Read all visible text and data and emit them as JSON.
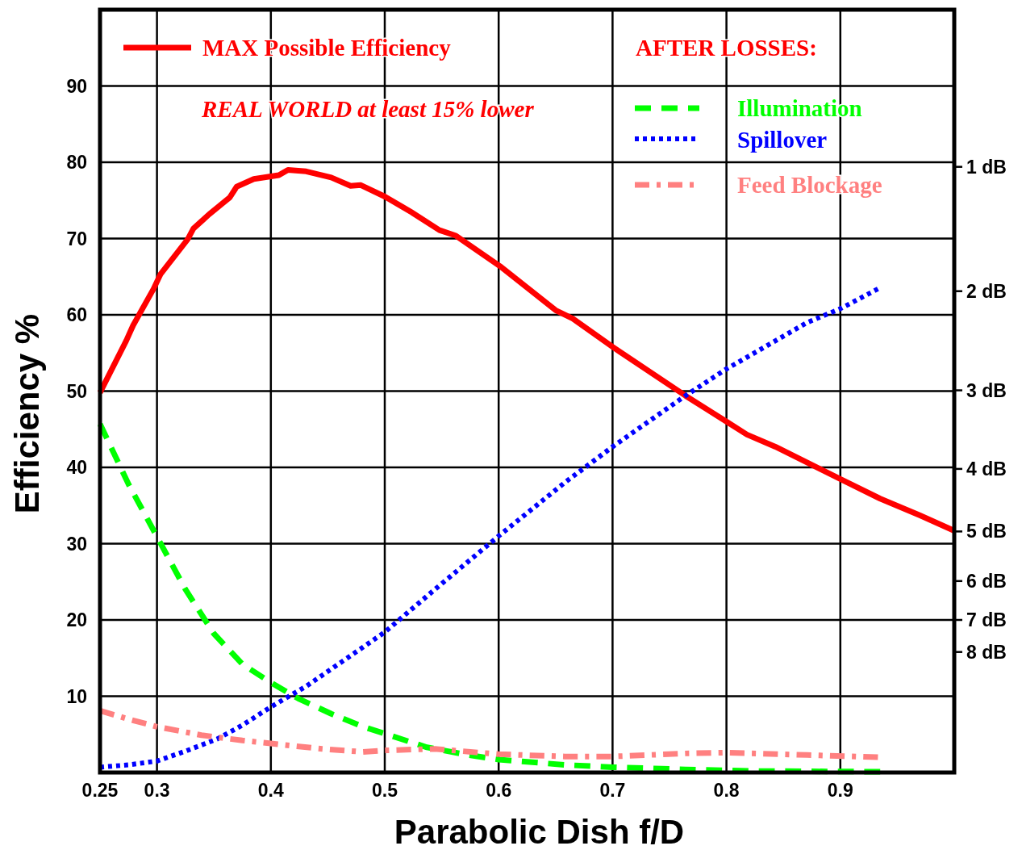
{
  "chart_data": {
    "type": "line",
    "xlabel": "Parabolic Dish f/D",
    "ylabel": "Efficiency %",
    "legend_title": "AFTER LOSSES:",
    "annotations": [
      "REAL WORLD at least 15% lower"
    ],
    "ref_lines": [
      {
        "axis": "y",
        "value": 79.4,
        "label": "1 dB"
      },
      {
        "axis": "y",
        "value": 63.1,
        "label": "2 dB"
      },
      {
        "axis": "y",
        "value": 50.1,
        "label": "3 dB"
      },
      {
        "axis": "y",
        "value": 39.8,
        "label": "4 dB"
      },
      {
        "axis": "y",
        "value": 31.6,
        "label": "5 dB"
      },
      {
        "axis": "y",
        "value": 25.1,
        "label": "6 dB"
      },
      {
        "axis": "y",
        "value": 20.0,
        "label": "7 dB"
      },
      {
        "axis": "y",
        "value": 15.8,
        "label": "8 dB"
      }
    ],
    "xlim": [
      0.25,
      1.0
    ],
    "xticks": [
      0.25,
      0.3,
      0.4,
      0.5,
      0.6,
      0.7,
      0.8,
      0.9
    ],
    "ylim": [
      0,
      100
    ],
    "yticks": [
      10,
      20,
      30,
      40,
      50,
      60,
      70,
      80,
      90
    ],
    "grid": true,
    "legend": "top",
    "series": [
      {
        "name": "MAX Possible Efficiency",
        "color": "#ff0000",
        "line_style": "solid",
        "x": [
          0.25,
          0.273,
          0.279,
          0.297,
          0.303,
          0.327,
          0.332,
          0.346,
          0.364,
          0.37,
          0.385,
          0.407,
          0.415,
          0.431,
          0.453,
          0.47,
          0.479,
          0.5,
          0.523,
          0.548,
          0.562,
          0.601,
          0.65,
          0.665,
          0.7,
          0.764,
          0.8,
          0.818,
          0.843,
          0.901,
          0.935,
          0.97,
          1.0
        ],
        "values": [
          49.8,
          56.6,
          58.6,
          63.4,
          65.3,
          69.9,
          71.3,
          73.2,
          75.4,
          76.8,
          77.8,
          78.3,
          79.0,
          78.8,
          78.0,
          76.9,
          77.0,
          75.5,
          73.5,
          71.1,
          70.4,
          66.4,
          60.6,
          59.5,
          55.8,
          49.4,
          46.0,
          44.3,
          42.7,
          38.4,
          35.9,
          33.7,
          31.7
        ]
      },
      {
        "name": "Illumination",
        "color": "#00ff00",
        "line_style": "dashed",
        "x": [
          0.25,
          0.275,
          0.299,
          0.325,
          0.35,
          0.375,
          0.4,
          0.424,
          0.453,
          0.481,
          0.5,
          0.537,
          0.573,
          0.6,
          0.658,
          0.7,
          0.764,
          0.821,
          0.935
        ],
        "values": [
          45.7,
          37.8,
          31.2,
          24.0,
          18.2,
          14.2,
          11.8,
          9.7,
          7.7,
          6.0,
          5.1,
          3.3,
          2.3,
          1.7,
          1.0,
          0.7,
          0.4,
          0.2,
          0.1
        ]
      },
      {
        "name": "Spillover",
        "color": "#0000ff",
        "line_style": "dotted",
        "x": [
          0.25,
          0.275,
          0.3,
          0.325,
          0.353,
          0.375,
          0.4,
          0.431,
          0.467,
          0.5,
          0.544,
          0.6,
          0.658,
          0.7,
          0.764,
          0.8,
          0.871,
          0.9,
          0.933
        ],
        "values": [
          0.7,
          1.0,
          1.5,
          2.8,
          4.4,
          6.2,
          8.6,
          11.3,
          15.0,
          18.4,
          24.0,
          31.0,
          38.0,
          42.7,
          49.4,
          52.9,
          59.0,
          60.8,
          63.4
        ]
      },
      {
        "name": "Feed Blockage",
        "color": "#ff8080",
        "line_style": "dashdot",
        "x": [
          0.25,
          0.275,
          0.3,
          0.339,
          0.375,
          0.4,
          0.445,
          0.481,
          0.5,
          0.544,
          0.6,
          0.658,
          0.7,
          0.764,
          0.8,
          0.871,
          0.933
        ],
        "values": [
          8.1,
          7.0,
          6.0,
          4.9,
          4.2,
          3.8,
          3.1,
          2.7,
          2.9,
          3.1,
          2.4,
          2.1,
          2.1,
          2.5,
          2.6,
          2.3,
          2.0
        ]
      }
    ]
  }
}
